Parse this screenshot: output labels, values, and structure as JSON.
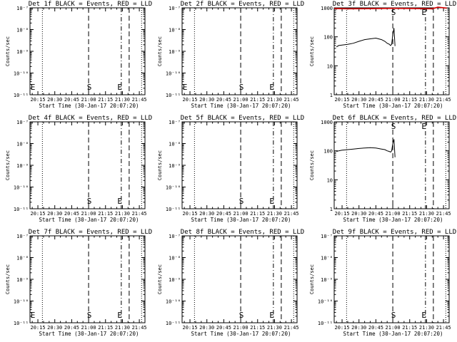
{
  "layout_grid": {
    "rows": 3,
    "cols": 3
  },
  "colors": {
    "events": "#000000",
    "lld": "#d40000",
    "axes": "#000000",
    "background": "#ffffff"
  },
  "x_axis": {
    "tick_labels": [
      "20:15",
      "20:30",
      "20:45",
      "21:00",
      "21:15",
      "21:30",
      "21:45"
    ],
    "tick_minutes": [
      15,
      30,
      45,
      60,
      75,
      90,
      105
    ],
    "range_minutes": [
      8,
      110
    ],
    "label": "Start Time (30-Jan-17 20:07:20)"
  },
  "y_axis": {
    "label": "Counts/sec",
    "scale": "log"
  },
  "markers": {
    "dotted_minutes": [
      19,
      107
    ],
    "dashed_minutes": [
      60,
      96
    ],
    "dashdot_minutes": [
      89
    ],
    "S": {
      "text": "S",
      "minute": 60
    },
    "E": {
      "text": "E",
      "minute": 87
    },
    "E_left": {
      "text": "E",
      "minute": 9
    }
  },
  "panels": [
    {
      "title": "Det 1f BLACK = Events, RED = LLD",
      "ylog_range": [
        -11,
        -7
      ],
      "tick_labels": [
        "10⁻¹¹",
        "10⁻¹⁰",
        "10⁻⁹",
        "10⁻⁸",
        "10⁻⁷"
      ],
      "has_data": false,
      "left_E": true
    },
    {
      "title": "Det 2f BLACK = Events, RED = LLD",
      "ylog_range": [
        -11,
        -7
      ],
      "tick_labels": [
        "10⁻¹¹",
        "10⁻¹⁰",
        "10⁻⁹",
        "10⁻⁸",
        "10⁻⁷"
      ],
      "has_data": false,
      "left_E": true
    },
    {
      "title": "Det 3f BLACK = Events, RED = LLD",
      "ylog_range": [
        0,
        3
      ],
      "tick_labels": [
        "1",
        "10",
        "100",
        "1000"
      ],
      "has_data": true,
      "left_E": false,
      "chart_data": {
        "type": "line",
        "series": [
          {
            "name": "Events",
            "x": [
              10,
              12,
              15,
              20,
              25,
              30,
              35,
              40,
              45,
              50,
              53,
              55,
              57,
              58,
              59,
              60,
              61,
              62
            ],
            "y": [
              45,
              50,
              52,
              55,
              60,
              70,
              80,
              85,
              90,
              80,
              70,
              60,
              55,
              50,
              55,
              120,
              200,
              48
            ]
          },
          {
            "name": "LLD",
            "x": [
              8,
              20,
              40,
              60,
              80,
              95,
              100,
              108
            ],
            "y": [
              950,
              930,
              940,
              960,
              950,
              930,
              1050,
              980
            ]
          }
        ]
      }
    },
    {
      "title": "Det 4f BLACK = Events, RED = LLD",
      "ylog_range": [
        -11,
        -7
      ],
      "tick_labels": [
        "10⁻¹¹",
        "10⁻¹⁰",
        "10⁻⁹",
        "10⁻⁸",
        "10⁻⁷"
      ],
      "has_data": false,
      "left_E": false
    },
    {
      "title": "Det 5f BLACK = Events, RED = LLD",
      "ylog_range": [
        -11,
        -7
      ],
      "tick_labels": [
        "10⁻¹¹",
        "10⁻¹⁰",
        "10⁻⁹",
        "10⁻⁸",
        "10⁻⁷"
      ],
      "has_data": false,
      "left_E": false
    },
    {
      "title": "Det 6f BLACK = Events, RED = LLD",
      "ylog_range": [
        0,
        3
      ],
      "tick_labels": [
        "1",
        "10",
        "100",
        "1000"
      ],
      "has_data": true,
      "left_E": false,
      "chart_data": {
        "type": "line",
        "series": [
          {
            "name": "Events",
            "x": [
              10,
              12,
              15,
              20,
              25,
              30,
              35,
              40,
              45,
              50,
              53,
              55,
              57,
              58,
              59,
              60,
              61,
              62
            ],
            "y": [
              95,
              100,
              105,
              110,
              115,
              120,
              125,
              128,
              125,
              115,
              110,
              100,
              95,
              90,
              100,
              180,
              250,
              60
            ]
          }
        ]
      }
    },
    {
      "title": "Det 7f BLACK = Events, RED = LLD",
      "ylog_range": [
        -11,
        -7
      ],
      "tick_labels": [
        "10⁻¹¹",
        "10⁻¹⁰",
        "10⁻⁹",
        "10⁻⁸",
        "10⁻⁷"
      ],
      "has_data": false,
      "left_E": true
    },
    {
      "title": "Det 8f BLACK = Events, RED = LLD",
      "ylog_range": [
        -11,
        -7
      ],
      "tick_labels": [
        "10⁻¹¹",
        "10⁻¹⁰",
        "10⁻⁹",
        "10⁻⁸",
        "10⁻⁷"
      ],
      "has_data": false,
      "left_E": false
    },
    {
      "title": "Det 9f BLACK = Events, RED = LLD",
      "ylog_range": [
        -11,
        -7
      ],
      "tick_labels": [
        "10⁻¹¹",
        "10⁻¹⁰",
        "10⁻⁹",
        "10⁻⁸",
        "10⁻⁷"
      ],
      "has_data": false,
      "left_E": false
    }
  ]
}
